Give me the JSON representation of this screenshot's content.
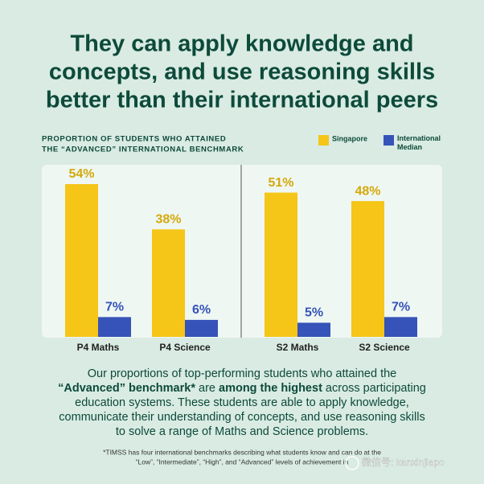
{
  "title_lines": [
    "They can apply knowledge and",
    "concepts, and use reasoning skills",
    "better than their international peers"
  ],
  "chart_data": {
    "type": "bar",
    "subtitle_lines": [
      "PROPORTION OF STUDENTS WHO ATTAINED",
      "THE “ADVANCED” INTERNATIONAL BENCHMARK"
    ],
    "categories": [
      "P4 Maths",
      "P4 Science",
      "S2 Maths",
      "S2 Science"
    ],
    "series": [
      {
        "name": "Singapore",
        "color": "#f5c518",
        "label_color": "#d4a90a",
        "values": [
          54,
          38,
          51,
          48
        ],
        "value_labels": [
          "54%",
          "38%",
          "51%",
          "48%"
        ]
      },
      {
        "name": "International Median",
        "color": "#3553b8",
        "label_color": "#3553b8",
        "values": [
          7,
          6,
          5,
          7
        ],
        "value_labels": [
          "7%",
          "6%",
          "5%",
          "7%"
        ]
      }
    ]
  },
  "body_lines": [
    [
      {
        "text": "Our proportions of top-performing students who attained the",
        "bold": false
      }
    ],
    [
      {
        "text": "“Advanced” benchmark*",
        "bold": true
      },
      {
        "text": " are ",
        "bold": false
      },
      {
        "text": "among the highest",
        "bold": true
      },
      {
        "text": " across participating",
        "bold": false
      }
    ],
    [
      {
        "text": "education systems. These students are able to apply knowledge,",
        "bold": false
      }
    ],
    [
      {
        "text": "communicate their understanding of concepts, and use reasoning skills",
        "bold": false
      }
    ],
    [
      {
        "text": "to solve a range of Maths and Science problems.",
        "bold": false
      }
    ]
  ],
  "footnote_lines": [
    "*TIMSS has four international benchmarks describing what students know and can do at the",
    "“Low”, “Intermediate”, “High”, and “Advanced” levels of achievement in"
  ],
  "watermark": "微信号: kanxinjiapo"
}
